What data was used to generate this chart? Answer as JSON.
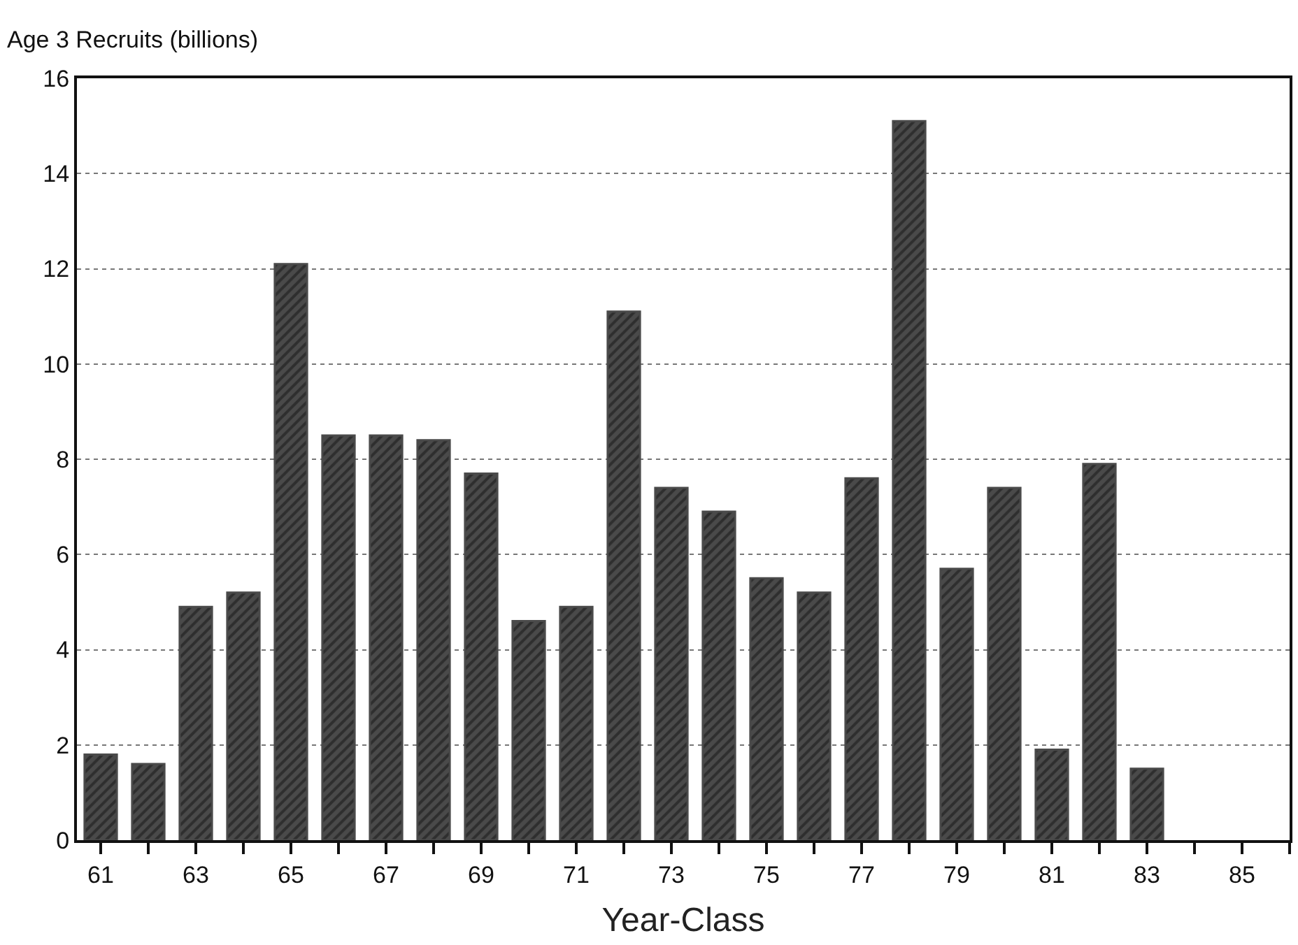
{
  "chart_data": {
    "type": "bar",
    "ylabel": "Age 3 Recruits (billions)",
    "xlabel": "Year-Class",
    "x": [
      61,
      62,
      63,
      64,
      65,
      66,
      67,
      68,
      69,
      70,
      71,
      72,
      73,
      74,
      75,
      76,
      77,
      78,
      79,
      80,
      81,
      82,
      83
    ],
    "values": [
      1.8,
      1.6,
      4.9,
      5.2,
      12.1,
      8.5,
      8.5,
      8.4,
      7.7,
      4.6,
      4.9,
      11.1,
      7.4,
      6.9,
      5.5,
      5.2,
      7.6,
      15.1,
      5.7,
      7.4,
      1.9,
      7.9,
      1.5
    ],
    "color": "#4a4a4a",
    "xlim": [
      60.5,
      86
    ],
    "xticks": [
      61,
      {
        "value": 62,
        "label": null
      },
      63,
      {
        "value": 64,
        "label": null
      },
      65,
      {
        "value": 66,
        "label": null
      },
      67,
      {
        "value": 68,
        "label": null
      },
      69,
      {
        "value": 70,
        "label": null
      },
      71,
      {
        "value": 72,
        "label": null
      },
      73,
      {
        "value": 74,
        "label": null
      },
      75,
      {
        "value": 76,
        "label": null
      },
      77,
      {
        "value": 78,
        "label": null
      },
      79,
      {
        "value": 80,
        "label": null
      },
      81,
      {
        "value": 82,
        "label": null
      },
      83,
      {
        "value": 84,
        "label": null
      },
      85,
      {
        "value": 86,
        "label": null
      }
    ],
    "ylim": [
      0,
      16
    ],
    "yticks": [
      0,
      2,
      4,
      6,
      8,
      10,
      12,
      14,
      16
    ],
    "grid": "y"
  }
}
